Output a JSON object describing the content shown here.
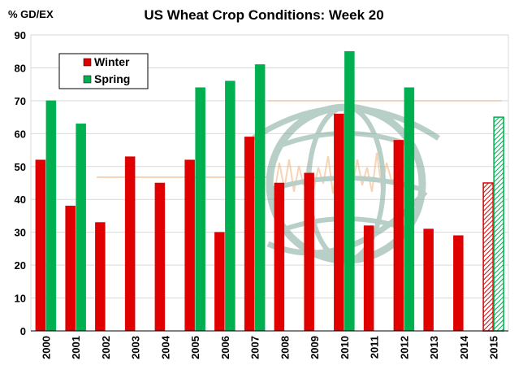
{
  "chart_data": {
    "type": "bar",
    "title": "US Wheat Crop Conditions: Week 20",
    "ylabel": "% GD/EX",
    "xlabel": "",
    "ylim": [
      0,
      90
    ],
    "yticks": [
      0,
      10,
      20,
      30,
      40,
      50,
      60,
      70,
      80,
      90
    ],
    "grid": true,
    "legend_position": "top-left",
    "categories": [
      "2000",
      "2001",
      "2002",
      "2003",
      "2004",
      "2005",
      "2006",
      "2007",
      "2008",
      "2009",
      "2010",
      "2011",
      "2012",
      "2013",
      "2014",
      "2015"
    ],
    "series": [
      {
        "name": "Winter",
        "color": "#e00000",
        "values": [
          52,
          38,
          33,
          53,
          45,
          52,
          30,
          59,
          45,
          48,
          66,
          32,
          58,
          31,
          29,
          45
        ],
        "hatched": [
          false,
          false,
          false,
          false,
          false,
          false,
          false,
          false,
          false,
          false,
          false,
          false,
          false,
          false,
          false,
          true
        ]
      },
      {
        "name": "Spring",
        "color": "#00b050",
        "values": [
          70,
          63,
          null,
          null,
          null,
          74,
          76,
          81,
          null,
          null,
          85,
          null,
          74,
          null,
          null,
          65
        ],
        "hatched": [
          false,
          false,
          false,
          false,
          false,
          false,
          false,
          false,
          false,
          false,
          false,
          false,
          false,
          false,
          false,
          true
        ]
      }
    ]
  },
  "colors": {
    "winter": "#e00000",
    "spring": "#00b050",
    "grid": "#d9d9d9",
    "watermark_globe": "#7fa99a",
    "watermark_line": "#f2b27a"
  },
  "icons": {
    "watermark": "globe-logo-icon"
  }
}
